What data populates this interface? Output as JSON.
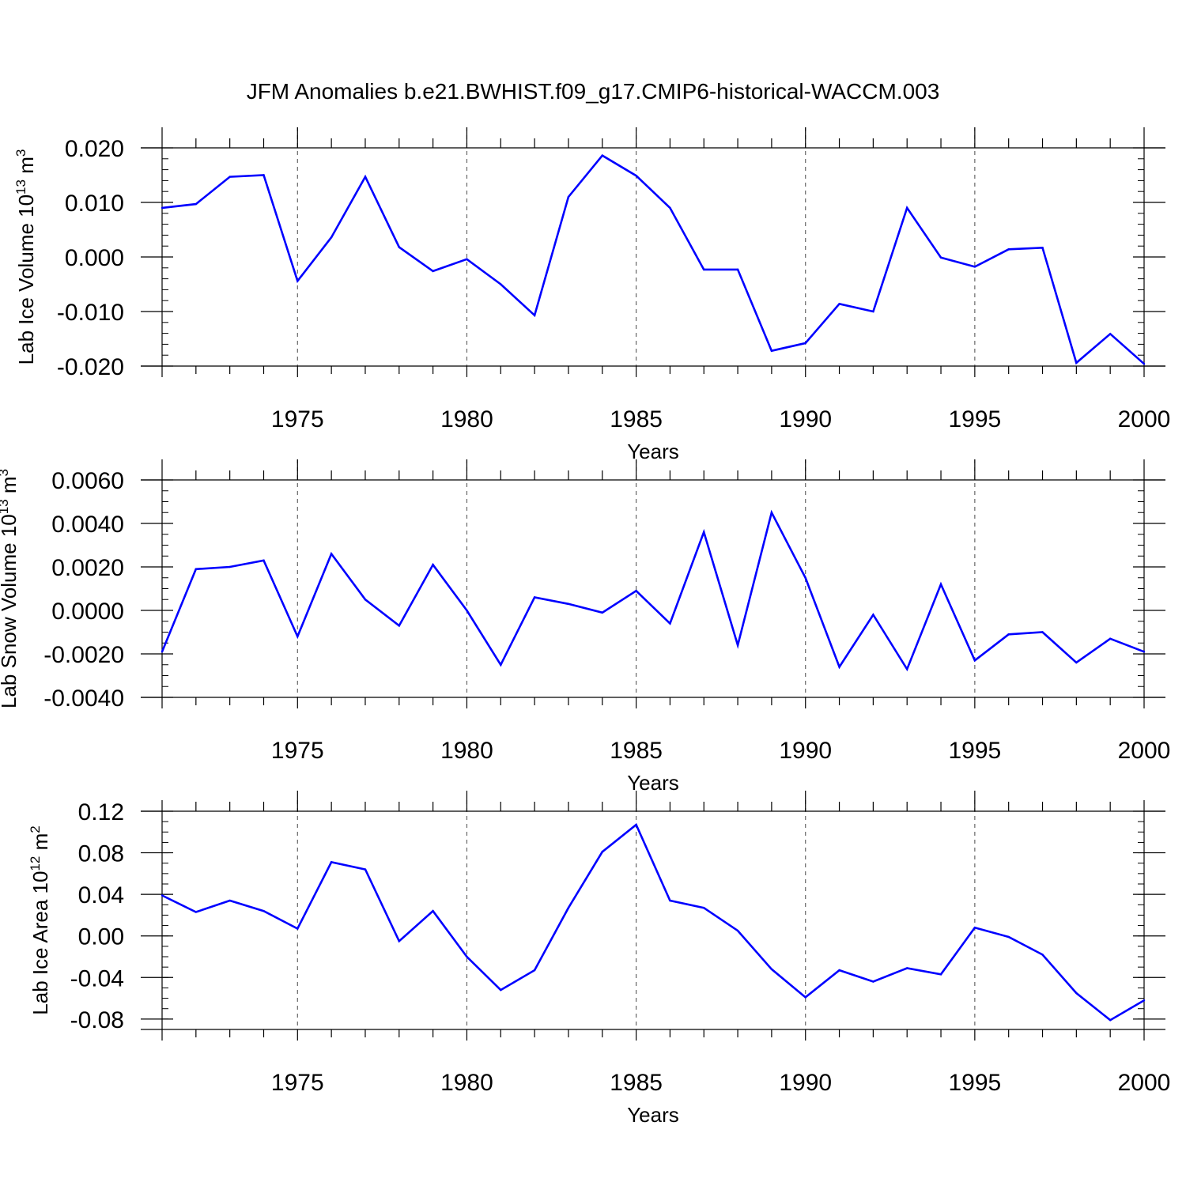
{
  "title": "JFM Anomalies b.e21.BWHIST.f09_g17.CMIP6-historical-WACCM.003",
  "line_color": "#0000ff",
  "chart_data": [
    {
      "type": "line",
      "ylabel": {
        "main": "Lab Ice Volume 10",
        "sup": "13",
        "tail": " m",
        "sup2": "3"
      },
      "xlabel": "Years",
      "xlim": [
        1971,
        2000
      ],
      "ylim": [
        -0.02,
        0.02
      ],
      "yticks": [
        -0.02,
        -0.01,
        0.0,
        0.01,
        0.02
      ],
      "ytick_labels": [
        "-0.020",
        "-0.010",
        "0.000",
        "0.010",
        "0.020"
      ],
      "ytick_minor": 0.002,
      "xticks": [
        1975,
        1980,
        1985,
        1990,
        1995,
        2000
      ],
      "xtick_labels": [
        "1975",
        "1980",
        "1985",
        "1990",
        "1995",
        "2000"
      ],
      "grid_x": true,
      "x": [
        1971,
        1972,
        1973,
        1974,
        1975,
        1976,
        1977,
        1978,
        1979,
        1980,
        1981,
        1982,
        1983,
        1984,
        1985,
        1986,
        1987,
        1988,
        1989,
        1990,
        1991,
        1992,
        1993,
        1994,
        1995,
        1996,
        1997,
        1998,
        1999,
        2000
      ],
      "values": [
        0.009,
        0.0097,
        0.0147,
        0.015,
        -0.0044,
        0.0036,
        0.0147,
        0.0018,
        -0.0026,
        -0.0004,
        -0.005,
        -0.0107,
        0.011,
        0.0186,
        0.0149,
        0.009,
        -0.0023,
        -0.0023,
        -0.0172,
        -0.0158,
        -0.0086,
        -0.01,
        0.009,
        -0.0001,
        -0.0018,
        0.0014,
        0.0017,
        -0.0194,
        -0.0141,
        -0.0196
      ]
    },
    {
      "type": "line",
      "ylabel": {
        "main": "Lab Snow Volume 10",
        "sup": "13",
        "tail": " m",
        "sup2": "3"
      },
      "xlabel": "Years",
      "xlim": [
        1971,
        2000
      ],
      "ylim": [
        -0.004,
        0.006
      ],
      "yticks": [
        -0.004,
        -0.002,
        0.0,
        0.002,
        0.004,
        0.006
      ],
      "ytick_labels": [
        "-0.0040",
        "-0.0020",
        "0.0000",
        "0.0020",
        "0.0040",
        "0.0060"
      ],
      "ytick_minor": 0.0005,
      "xticks": [
        1975,
        1980,
        1985,
        1990,
        1995,
        2000
      ],
      "xtick_labels": [
        "1975",
        "1980",
        "1985",
        "1990",
        "1995",
        "2000"
      ],
      "grid_x": true,
      "x": [
        1971,
        1972,
        1973,
        1974,
        1975,
        1976,
        1977,
        1978,
        1979,
        1980,
        1981,
        1982,
        1983,
        1984,
        1985,
        1986,
        1987,
        1988,
        1989,
        1990,
        1991,
        1992,
        1993,
        1994,
        1995,
        1996,
        1997,
        1998,
        1999,
        2000
      ],
      "values": [
        -0.0019,
        0.0019,
        0.002,
        0.0023,
        -0.0012,
        0.0026,
        0.0005,
        -0.0007,
        0.0021,
        0.0,
        -0.0025,
        0.0006,
        0.0003,
        -0.0001,
        0.0009,
        -0.0006,
        0.0036,
        -0.0016,
        0.0045,
        0.0015,
        -0.0026,
        -0.0002,
        -0.0027,
        0.0012,
        -0.0023,
        -0.0011,
        -0.001,
        -0.0024,
        -0.0013,
        -0.0019
      ]
    },
    {
      "type": "line",
      "ylabel": {
        "main": "Lab Ice Area 10",
        "sup": "12",
        "tail": " m",
        "sup2": "2"
      },
      "xlabel": "Years",
      "xlim": [
        1971,
        2000
      ],
      "ylim": [
        -0.09,
        0.12
      ],
      "yticks": [
        -0.08,
        -0.04,
        0.0,
        0.04,
        0.08,
        0.12
      ],
      "ytick_labels": [
        "-0.08",
        "-0.04",
        "0.00",
        "0.04",
        "0.08",
        "0.12"
      ],
      "ytick_minor": 0.01,
      "xticks": [
        1975,
        1980,
        1985,
        1990,
        1995,
        2000
      ],
      "xtick_labels": [
        "1975",
        "1980",
        "1985",
        "1990",
        "1995",
        "2000"
      ],
      "grid_x": true,
      "x": [
        1971,
        1972,
        1973,
        1974,
        1975,
        1976,
        1977,
        1978,
        1979,
        1980,
        1981,
        1982,
        1983,
        1984,
        1985,
        1986,
        1987,
        1988,
        1989,
        1990,
        1991,
        1992,
        1993,
        1994,
        1995,
        1996,
        1997,
        1998,
        1999,
        2000
      ],
      "values": [
        0.039,
        0.023,
        0.034,
        0.024,
        0.007,
        0.071,
        0.064,
        -0.005,
        0.024,
        -0.02,
        -0.052,
        -0.033,
        0.027,
        0.081,
        0.107,
        0.034,
        0.027,
        0.005,
        -0.032,
        -0.059,
        -0.033,
        -0.044,
        -0.031,
        -0.037,
        0.008,
        -0.001,
        -0.018,
        -0.055,
        -0.081,
        -0.062
      ]
    }
  ]
}
